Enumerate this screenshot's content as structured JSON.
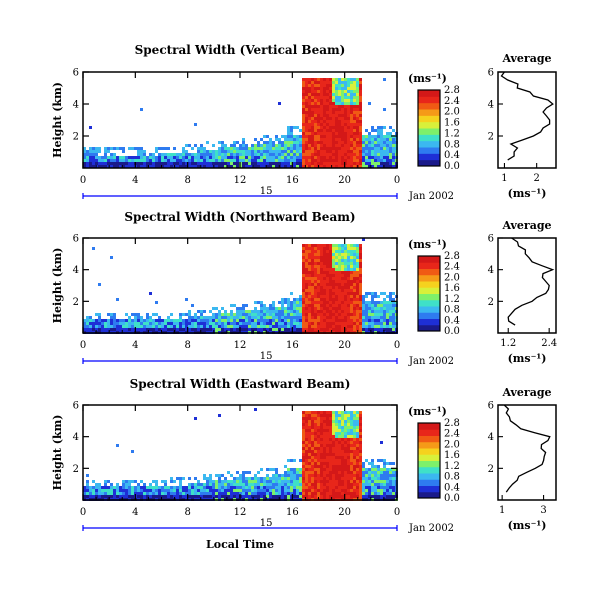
{
  "figure": {
    "xlabel_bottom": "Local Time",
    "colorbar_unit": "(ms⁻¹)",
    "average_title": "Average",
    "average_xlabel": "(ms⁻¹)",
    "palette": [
      "#1a1a8a",
      "#1e2fd6",
      "#2e7bf0",
      "#3bb8f0",
      "#3fe0c8",
      "#7ef06a",
      "#d8f03a",
      "#f5d21e",
      "#f59a18",
      "#f05a14",
      "#e8261a",
      "#d41818"
    ],
    "accent_line": "#0000ff"
  },
  "chart_data": [
    {
      "type": "heatmap",
      "title": "Spectral Width (Vertical Beam)",
      "ylabel": "Height (km)",
      "y_ticks": [
        "2",
        "4",
        "6"
      ],
      "ylim": [
        0,
        6
      ],
      "x_ticks": [
        "0",
        "4",
        "8",
        "12",
        "16",
        "20",
        "0"
      ],
      "xlim": [
        0,
        24
      ],
      "date_tick": "15",
      "date_label": "Jan 2002",
      "colorbar_ticks": [
        "0.0",
        "0.4",
        "0.8",
        "1.2",
        "1.6",
        "2.0",
        "2.4",
        "2.8"
      ],
      "colorbar_range": [
        0,
        2.8
      ],
      "average": {
        "x_ticks": [
          "1",
          "2"
        ],
        "xlim": [
          0.8,
          2.6
        ],
        "y_ticks": [
          "2",
          "4",
          "6"
        ],
        "ylim": [
          0,
          6
        ],
        "height": [
          0.5,
          1.0,
          1.5,
          2.0,
          2.5,
          3.0,
          3.5,
          4.0,
          4.5,
          5.0,
          5.5,
          6.0
        ],
        "width": [
          1.1,
          1.3,
          1.2,
          1.9,
          2.2,
          2.4,
          2.2,
          2.5,
          1.9,
          1.4,
          1.1,
          1.0
        ]
      }
    },
    {
      "type": "heatmap",
      "title": "Spectral Width (Northward Beam)",
      "ylabel": "Height (km)",
      "y_ticks": [
        "2",
        "4",
        "6"
      ],
      "ylim": [
        0,
        6
      ],
      "x_ticks": [
        "0",
        "4",
        "8",
        "12",
        "16",
        "20",
        "0"
      ],
      "xlim": [
        0,
        24
      ],
      "date_tick": "15",
      "date_label": "Jan 2002",
      "colorbar_ticks": [
        "0.0",
        "0.4",
        "0.8",
        "1.2",
        "1.6",
        "2.0",
        "2.4",
        "2.8"
      ],
      "colorbar_range": [
        0,
        2.8
      ],
      "average": {
        "x_ticks": [
          "1.2",
          "2.4"
        ],
        "xlim": [
          0.9,
          2.6
        ],
        "y_ticks": [
          "2",
          "4",
          "6"
        ],
        "ylim": [
          0,
          6
        ],
        "height": [
          0.5,
          1.0,
          1.5,
          2.0,
          2.5,
          3.0,
          3.5,
          4.0,
          4.5,
          5.0,
          5.5,
          6.0
        ],
        "width": [
          1.4,
          1.2,
          1.4,
          1.9,
          2.3,
          2.4,
          2.2,
          2.5,
          1.9,
          1.7,
          1.5,
          1.3
        ]
      }
    },
    {
      "type": "heatmap",
      "title": "Spectral Width (Eastward Beam)",
      "ylabel": "Height (km)",
      "y_ticks": [
        "2",
        "4",
        "6"
      ],
      "ylim": [
        0,
        6
      ],
      "x_ticks": [
        "0",
        "4",
        "8",
        "12",
        "16",
        "20",
        "0"
      ],
      "xlim": [
        0,
        24
      ],
      "date_tick": "15",
      "date_label": "Jan 2002",
      "colorbar_ticks": [
        "0.0",
        "0.4",
        "0.8",
        "1.2",
        "1.6",
        "2.0",
        "2.4",
        "2.8"
      ],
      "colorbar_range": [
        0,
        2.8
      ],
      "average": {
        "x_ticks": [
          "1",
          "3"
        ],
        "xlim": [
          0.8,
          3.6
        ],
        "y_ticks": [
          "2",
          "4",
          "6"
        ],
        "ylim": [
          0,
          6
        ],
        "height": [
          0.5,
          1.0,
          1.5,
          2.0,
          2.5,
          3.0,
          3.5,
          4.0,
          4.5,
          5.0,
          5.5,
          6.0
        ],
        "width": [
          1.2,
          1.5,
          1.8,
          2.6,
          3.0,
          3.1,
          2.9,
          3.3,
          1.9,
          1.4,
          1.2,
          1.1
        ]
      }
    }
  ]
}
